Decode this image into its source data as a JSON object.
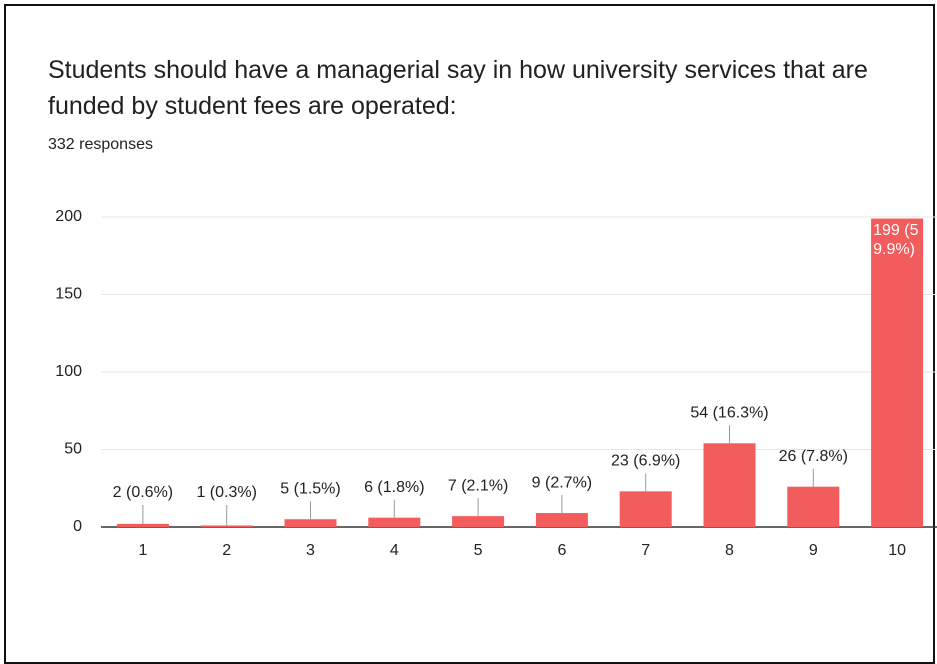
{
  "chart_data": {
    "type": "bar",
    "title": "Students should have a managerial say in how university services that are funded by student fees are operated:",
    "subtitle": "332 responses",
    "categories": [
      "1",
      "2",
      "3",
      "4",
      "5",
      "6",
      "7",
      "8",
      "9",
      "10"
    ],
    "values": [
      2,
      1,
      5,
      6,
      7,
      9,
      23,
      54,
      26,
      199
    ],
    "value_labels": [
      "2 (0.6%)",
      "1 (0.3%)",
      "5 (1.5%)",
      "6 (1.8%)",
      "7 (2.1%)",
      "9 (2.7%)",
      "23 (6.9%)",
      "54 (16.3%)",
      "26 (7.8%)",
      "199 (59.9%)"
    ],
    "color": "#f25c5c",
    "ylim": [
      0,
      200
    ],
    "yticks": [
      0,
      50,
      100,
      150,
      200
    ],
    "grid": true
  }
}
